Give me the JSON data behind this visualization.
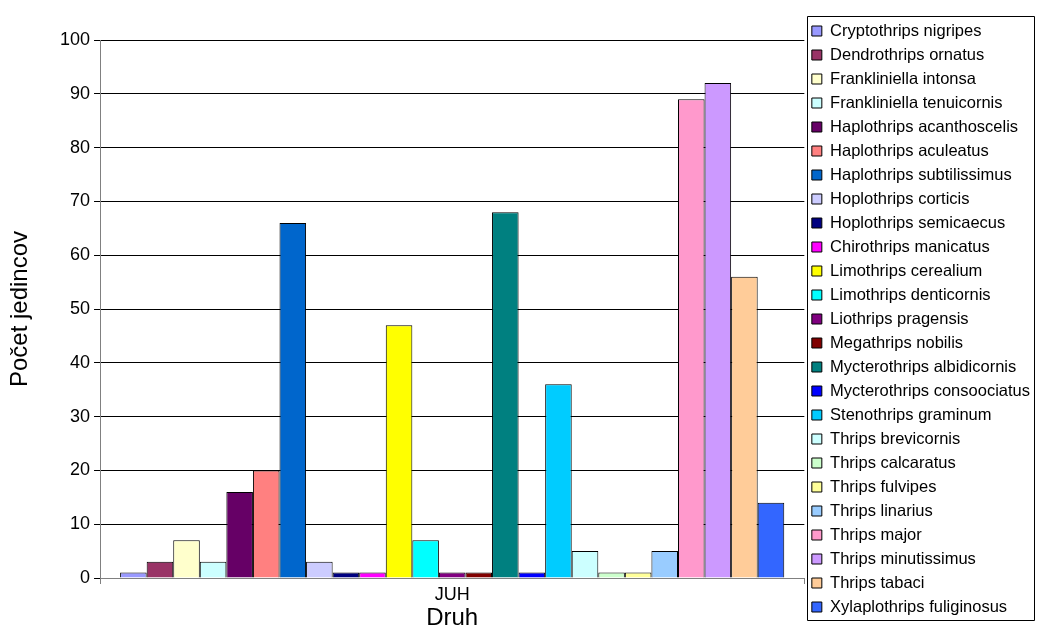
{
  "chart_data": {
    "type": "bar",
    "xlabel": "Druh",
    "ylabel": "Počet jedincov",
    "categories": [
      "JUH"
    ],
    "series": [
      {
        "name": "Cryptothrips nigripes",
        "color": "#9999ff",
        "values": [
          1
        ]
      },
      {
        "name": "Dendrothrips ornatus",
        "color": "#993366",
        "values": [
          3
        ]
      },
      {
        "name": "Frankliniella intonsa",
        "color": "#ffffcc",
        "values": [
          7
        ]
      },
      {
        "name": "Frankliniella tenuicornis",
        "color": "#ccffff",
        "values": [
          3
        ]
      },
      {
        "name": "Haplothrips acanthoscelis",
        "color": "#660066",
        "values": [
          16
        ]
      },
      {
        "name": "Haplothrips aculeatus",
        "color": "#ff8080",
        "values": [
          20
        ]
      },
      {
        "name": "Haplothrips subtilissimus",
        "color": "#0066cc",
        "values": [
          66
        ]
      },
      {
        "name": "Hoplothrips corticis",
        "color": "#ccccff",
        "values": [
          3
        ]
      },
      {
        "name": "Hoplothrips semicaecus",
        "color": "#000080",
        "values": [
          1
        ]
      },
      {
        "name": "Chirothrips manicatus",
        "color": "#ff00ff",
        "values": [
          1
        ]
      },
      {
        "name": "Limothrips cerealium",
        "color": "#ffff00",
        "values": [
          47
        ]
      },
      {
        "name": "Limothrips denticornis",
        "color": "#00ffff",
        "values": [
          7
        ]
      },
      {
        "name": "Liothrips pragensis",
        "color": "#800080",
        "values": [
          1
        ]
      },
      {
        "name": "Megathrips nobilis",
        "color": "#800000",
        "values": [
          1
        ]
      },
      {
        "name": "Mycterothrips albidicornis",
        "color": "#008080",
        "values": [
          68
        ]
      },
      {
        "name": "Mycterothrips consoociatus",
        "color": "#0000ff",
        "values": [
          1
        ]
      },
      {
        "name": "Stenothrips graminum",
        "color": "#00ccff",
        "values": [
          36
        ]
      },
      {
        "name": "Thrips brevicornis",
        "color": "#ccffff",
        "values": [
          5
        ]
      },
      {
        "name": "Thrips calcaratus",
        "color": "#ccffcc",
        "values": [
          1
        ]
      },
      {
        "name": "Thrips fulvipes",
        "color": "#ffff99",
        "values": [
          1
        ]
      },
      {
        "name": "Thrips linarius",
        "color": "#99ccff",
        "values": [
          5
        ]
      },
      {
        "name": "Thrips major",
        "color": "#ff99cc",
        "values": [
          89
        ]
      },
      {
        "name": "Thrips minutissimus",
        "color": "#cc99ff",
        "values": [
          92
        ]
      },
      {
        "name": "Thrips tabaci",
        "color": "#ffcc99",
        "values": [
          56
        ]
      },
      {
        "name": "Xylaplothrips fuliginosus",
        "color": "#3366ff",
        "values": [
          14
        ]
      }
    ],
    "ylim": [
      0,
      100
    ],
    "yticks": [
      0,
      10,
      20,
      30,
      40,
      50,
      60,
      70,
      80,
      90,
      100
    ],
    "grid": "y",
    "legend": "right"
  }
}
